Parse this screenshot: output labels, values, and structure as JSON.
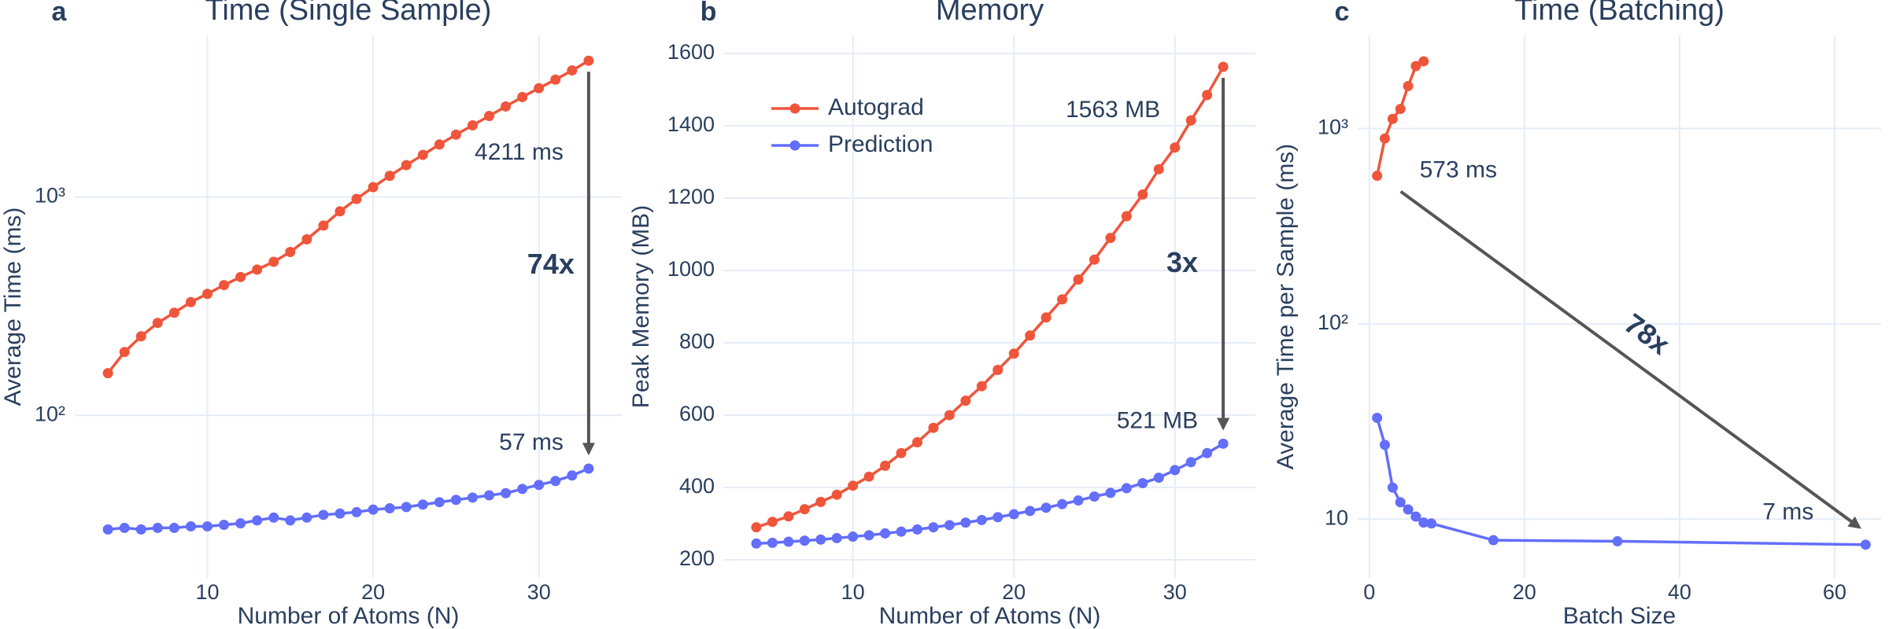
{
  "chart_data": [
    {
      "type": "line",
      "panel_label": "a",
      "title": "Time (Single Sample)",
      "x_label": "Number of Atoms (N)",
      "y_label": "Average Time (ms)",
      "log_y": true,
      "grid": true,
      "xlim": [
        2,
        35
      ],
      "ylim": [
        18,
        5500
      ],
      "xticks": [
        10,
        20,
        30
      ],
      "yticks": [
        {
          "value": 100,
          "label": "10²"
        },
        {
          "value": 1000,
          "label": "10³"
        }
      ],
      "series": [
        {
          "color": "#EF553B",
          "x": [
            4,
            5,
            6,
            7,
            8,
            9,
            10,
            11,
            12,
            13,
            14,
            15,
            16,
            17,
            18,
            19,
            20,
            21,
            22,
            23,
            24,
            25,
            26,
            27,
            28,
            29,
            30,
            31,
            32,
            33
          ],
          "values": [
            156,
            195,
            230,
            265,
            295,
            330,
            360,
            395,
            430,
            465,
            505,
            560,
            640,
            740,
            860,
            980,
            1110,
            1250,
            1400,
            1560,
            1740,
            1930,
            2130,
            2350,
            2600,
            2870,
            3150,
            3450,
            3800,
            4211
          ]
        },
        {
          "color": "#636EFA",
          "x": [
            4,
            5,
            6,
            7,
            8,
            9,
            10,
            11,
            12,
            13,
            14,
            15,
            16,
            17,
            18,
            19,
            20,
            21,
            22,
            23,
            24,
            25,
            26,
            27,
            28,
            29,
            30,
            31,
            32,
            33
          ],
          "values": [
            30,
            30.5,
            30,
            30.5,
            30.5,
            31,
            31,
            31.5,
            32,
            33,
            34,
            33,
            34,
            35,
            35.5,
            36,
            37,
            37.5,
            38,
            39,
            40,
            41,
            42,
            43,
            44,
            46,
            48,
            50,
            53,
            57
          ]
        }
      ],
      "annotations": [
        "4211 ms",
        "57 ms",
        "74x"
      ]
    },
    {
      "type": "line",
      "panel_label": "b",
      "title": "Memory",
      "x_label": "Number of Atoms (N)",
      "y_label": "Peak Memory (MB)",
      "log_y": false,
      "grid": true,
      "xlim": [
        2,
        35
      ],
      "ylim": [
        150,
        1650
      ],
      "xticks": [
        10,
        20,
        30
      ],
      "yticks": [
        200,
        400,
        600,
        800,
        1000,
        1200,
        1400,
        1600
      ],
      "legend": "upper left",
      "series": [
        {
          "name": "Autograd",
          "color": "#EF553B",
          "x": [
            4,
            5,
            6,
            7,
            8,
            9,
            10,
            11,
            12,
            13,
            14,
            15,
            16,
            17,
            18,
            19,
            20,
            21,
            22,
            23,
            24,
            25,
            26,
            27,
            28,
            29,
            30,
            31,
            32,
            33
          ],
          "values": [
            290,
            305,
            320,
            340,
            360,
            380,
            405,
            430,
            460,
            495,
            525,
            565,
            600,
            640,
            680,
            725,
            770,
            820,
            870,
            920,
            975,
            1030,
            1090,
            1150,
            1210,
            1280,
            1340,
            1415,
            1485,
            1563
          ]
        },
        {
          "name": "Prediction",
          "color": "#636EFA",
          "x": [
            4,
            5,
            6,
            7,
            8,
            9,
            10,
            11,
            12,
            13,
            14,
            15,
            16,
            17,
            18,
            19,
            20,
            21,
            22,
            23,
            24,
            25,
            26,
            27,
            28,
            29,
            30,
            31,
            32,
            33
          ],
          "values": [
            245,
            247,
            250,
            253,
            256,
            260,
            264,
            268,
            273,
            278,
            284,
            290,
            296,
            303,
            310,
            318,
            326,
            335,
            344,
            354,
            364,
            375,
            385,
            398,
            412,
            427,
            448,
            470,
            495,
            521
          ]
        }
      ],
      "annotations": [
        "1563 MB",
        "521 MB",
        "3x"
      ]
    },
    {
      "type": "line",
      "panel_label": "c",
      "title": "Time (Batching)",
      "x_label": "Batch Size",
      "y_label": "Average Time per Sample (ms)",
      "log_y": true,
      "grid": true,
      "xlim": [
        -1.5,
        66
      ],
      "ylim": [
        5,
        3000
      ],
      "xticks": [
        0,
        20,
        40,
        60
      ],
      "yticks": [
        10,
        {
          "value": 100,
          "label": "10²"
        },
        {
          "value": 1000,
          "label": "10³"
        }
      ],
      "series": [
        {
          "color": "#EF553B",
          "x": [
            1,
            2,
            3,
            4,
            5,
            6,
            7
          ],
          "values": [
            573,
            890,
            1120,
            1260,
            1650,
            2090,
            2210
          ]
        },
        {
          "color": "#636EFA",
          "x": [
            1,
            2,
            3,
            4,
            5,
            6,
            7,
            8,
            16,
            32,
            64
          ],
          "values": [
            33,
            24,
            14.5,
            12.2,
            11.2,
            10.3,
            9.6,
            9.5,
            7.8,
            7.7,
            7.4
          ]
        }
      ],
      "annotations": [
        "573 ms",
        "7 ms",
        "78x"
      ]
    }
  ]
}
